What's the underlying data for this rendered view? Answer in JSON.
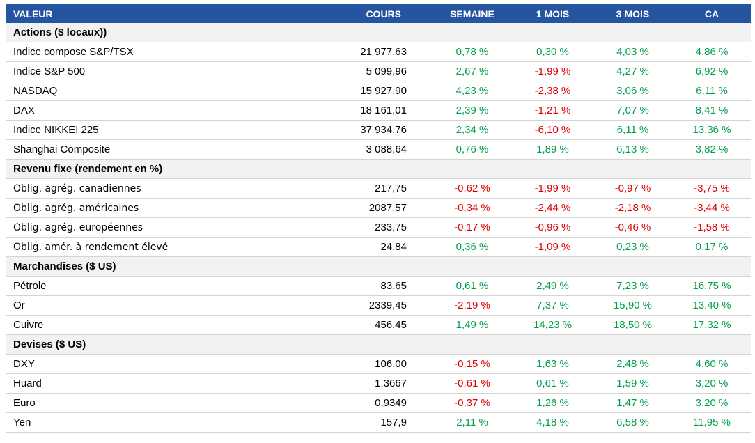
{
  "header": [
    "VALEUR",
    "COURS",
    "SEMAINE",
    "1 MOIS",
    "3 MOIS",
    "CA"
  ],
  "sections": [
    {
      "title": "Actions ($ locaux))",
      "rows": [
        [
          "Indice compose S&P/TSX",
          "21 977,63",
          "0,78 %",
          "0,30 %",
          "4,03 %",
          "4,86 %"
        ],
        [
          "Indice S&P 500",
          "5 099,96",
          "2,67 %",
          "-1,99 %",
          "4,27 %",
          "6,92 %"
        ],
        [
          "NASDAQ",
          "15 927,90",
          "4,23 %",
          "-2,38 %",
          "3,06 %",
          "6,11 %"
        ],
        [
          "DAX",
          "18 161,01",
          "2,39 %",
          "-1,21 %",
          "7,07 %",
          "8,41 %"
        ],
        [
          "Indice NIKKEI 225",
          "37 934,76",
          "2,34 %",
          "-6,10 %",
          "6,11 %",
          "13,36 %"
        ],
        [
          "Shanghai Composite",
          "3 088,64",
          "0,76 %",
          "1,89 %",
          "6,13 %",
          "3,82 %"
        ]
      ]
    },
    {
      "title": "Revenu fixe (rendement en %)",
      "rows": [
        [
          "Oblig. agrég. canadiennes",
          "217,75",
          "-0,62 %",
          "-1,99 %",
          "-0,97 %",
          "-3,75 %"
        ],
        [
          "Oblig. agrég. américaines",
          "2087,57",
          "-0,34 %",
          "-2,44 %",
          "-2,18 %",
          "-3,44 %"
        ],
        [
          "Oblig. agrég. européennes",
          "233,75",
          "-0,17 %",
          "-0,96 %",
          "-0,46 %",
          "-1,58 %"
        ],
        [
          "Oblig. amér. à rendement élevé",
          "24,84",
          "0,36 %",
          "-1,09 %",
          "0,23 %",
          "0,17 %"
        ]
      ]
    },
    {
      "title": "Marchandises ($ US)",
      "rows": [
        [
          "Pétrole",
          "83,65",
          "0,61 %",
          "2,49 %",
          "7,23 %",
          "16,75 %"
        ],
        [
          "Or",
          "2339,45",
          "-2,19 %",
          "7,37 %",
          "15,90 %",
          "13,40 %"
        ],
        [
          "Cuivre",
          "456,45",
          "1,49 %",
          "14,23 %",
          "18,50 %",
          "17,32 %"
        ]
      ]
    },
    {
      "title": "Devises ($ US)",
      "rows": [
        [
          "DXY",
          "106,00",
          "-0,15 %",
          "1,63 %",
          "2,48 %",
          "4,60 %"
        ],
        [
          "Huard",
          "1,3667",
          "-0,61 %",
          "0,61 %",
          "1,59 %",
          "3,20 %"
        ],
        [
          "Euro",
          "0,9349",
          "-0,37 %",
          "1,26 %",
          "1,47 %",
          "3,20 %"
        ],
        [
          "Yen",
          "157,9",
          "2,11 %",
          "4,18 %",
          "6,58 %",
          "11,95 %"
        ]
      ]
    }
  ]
}
